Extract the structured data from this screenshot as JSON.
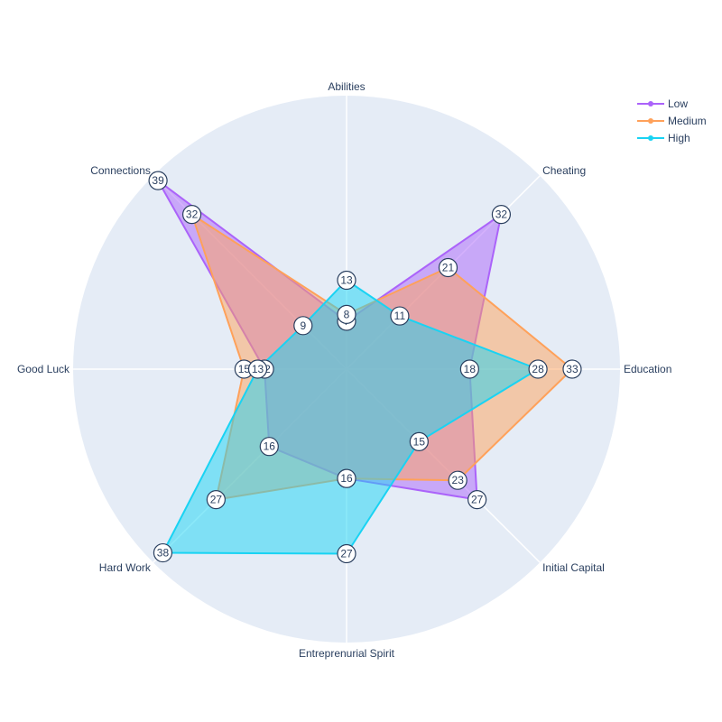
{
  "chart_data": {
    "type": "radar",
    "axes": [
      "Abilities",
      "Cheating",
      "Education",
      "Initial Capital",
      "Entreprenurial Spirit",
      "Hard Work",
      "Good Luck",
      "Connections"
    ],
    "radial_range": [
      0,
      40
    ],
    "grid": true,
    "legend_position": "top-right",
    "series": [
      {
        "name": "Low",
        "color": "#ab63fa",
        "values": [
          7,
          32,
          18,
          27,
          16,
          16,
          12,
          39
        ]
      },
      {
        "name": "Medium",
        "color": "#ffa15a",
        "values": [
          8,
          21,
          33,
          23,
          16,
          27,
          15,
          32
        ]
      },
      {
        "name": "High",
        "color": "#19d3f3",
        "values": [
          13,
          11,
          28,
          15,
          27,
          38,
          13,
          9
        ]
      }
    ]
  }
}
